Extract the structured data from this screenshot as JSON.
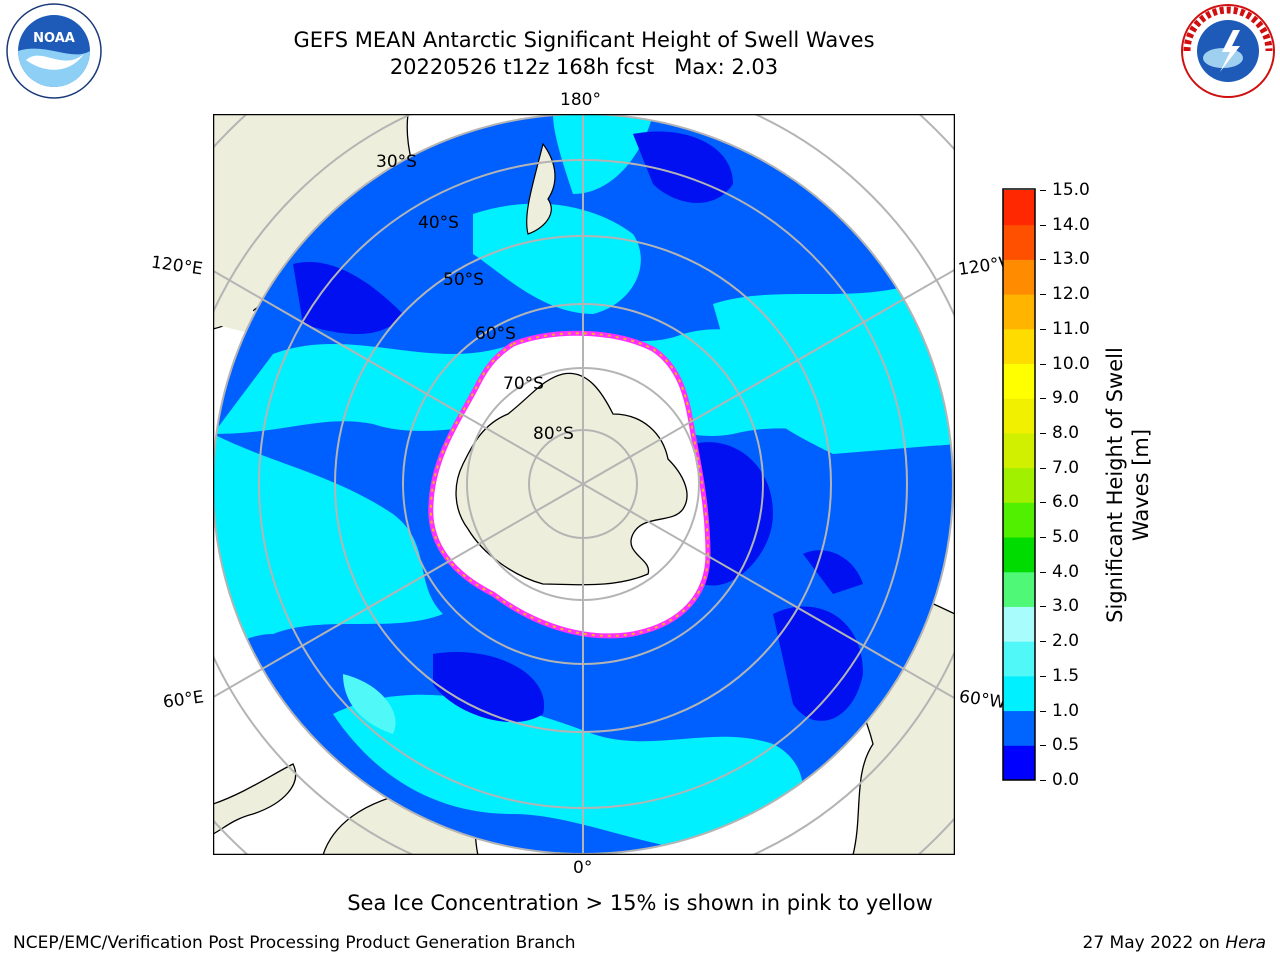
{
  "title": {
    "line1": "GEFS MEAN Antarctic Significant Height of Swell Waves",
    "line2": "20220526 t12z 168h fcst   Max: 2.03"
  },
  "logos": {
    "left_text": "NOAA",
    "right_text": "NATIONAL WEATHER SERVICE"
  },
  "map": {
    "longitude_labels": [
      "180°",
      "120°E",
      "120°W",
      "60°E",
      "60°W",
      "0°"
    ],
    "latitude_labels": [
      "30°S",
      "40°S",
      "50°S",
      "60°S",
      "70°S",
      "80°S"
    ],
    "colors": {
      "land": "#eeeedc",
      "ocean_low": "#0060ff",
      "ocean_mid": "#00f0ff",
      "ocean_verylow": "#0010f0",
      "sea_ice": "#ffffff",
      "ice_edge_pink": "#ff30ff",
      "ice_edge_orange": "#ffb020",
      "grid": "#b4b4b4"
    }
  },
  "colorbar": {
    "label": "Significant Height of Swell Waves [m]",
    "ticks": [
      "15.0",
      "14.0",
      "13.0",
      "12.0",
      "11.0",
      "10.0",
      "9.0",
      "8.0",
      "7.0",
      "6.0",
      "5.0",
      "4.0",
      "3.0",
      "2.0",
      "1.5",
      "1.0",
      "0.5",
      "0.0"
    ],
    "colors_bottom_to_top": [
      "#0000ff",
      "#0064ff",
      "#00f0ff",
      "#50f8f8",
      "#a8fcfc",
      "#50f878",
      "#00dc00",
      "#50f000",
      "#a0f000",
      "#d0f000",
      "#f0f000",
      "#ffff00",
      "#ffdc00",
      "#ffb400",
      "#ff8c00",
      "#ff5000",
      "#ff2800"
    ]
  },
  "caption": "Sea Ice Concentration > 15% is shown in pink to yellow",
  "footer": {
    "left": "NCEP/EMC/Verification Post Processing Product Generation Branch",
    "right_prefix": "27 May 2022 on ",
    "right_machine": "Hera"
  }
}
